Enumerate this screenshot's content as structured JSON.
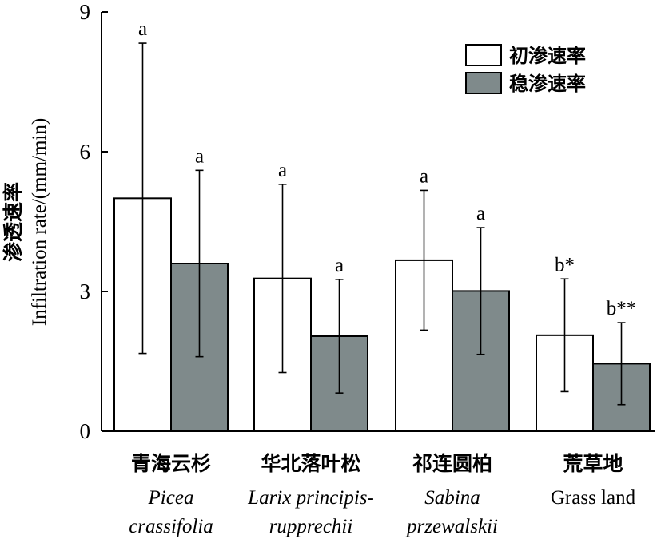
{
  "chart_data": {
    "type": "bar",
    "title": "",
    "ylabel_cn": "渗透速率",
    "ylabel_en": "Infiltration rate/(mm/min)",
    "ylim": [
      0,
      9
    ],
    "yticks": [
      "0",
      "3",
      "6",
      "9"
    ],
    "grid": false,
    "legend_position": "top-right",
    "categories": [
      {
        "cn": "青海云杉",
        "latin": [
          "Picea",
          "crassifolia"
        ],
        "italic": true
      },
      {
        "cn": "华北落叶松",
        "latin": [
          "Larix principis-",
          "rupprechii"
        ],
        "italic": true
      },
      {
        "cn": "祁连圆柏",
        "latin": [
          "Sabina",
          "przewalskii"
        ],
        "italic": true
      },
      {
        "cn": "荒草地",
        "latin": [
          "Grass land"
        ],
        "italic": false
      }
    ],
    "series": [
      {
        "name": "初渗速率",
        "color": "#ffffff",
        "values": [
          5.0,
          3.28,
          3.67,
          2.06
        ],
        "error": [
          3.33,
          2.02,
          1.5,
          1.21
        ],
        "labels": [
          "a",
          "a",
          "a",
          "b*"
        ]
      },
      {
        "name": "稳渗速率",
        "color": "#7f8a8b",
        "values": [
          3.6,
          2.04,
          3.01,
          1.45
        ],
        "error": [
          2.0,
          1.22,
          1.36,
          0.88
        ],
        "labels": [
          "a",
          "a",
          "a",
          "b**"
        ]
      }
    ]
  }
}
